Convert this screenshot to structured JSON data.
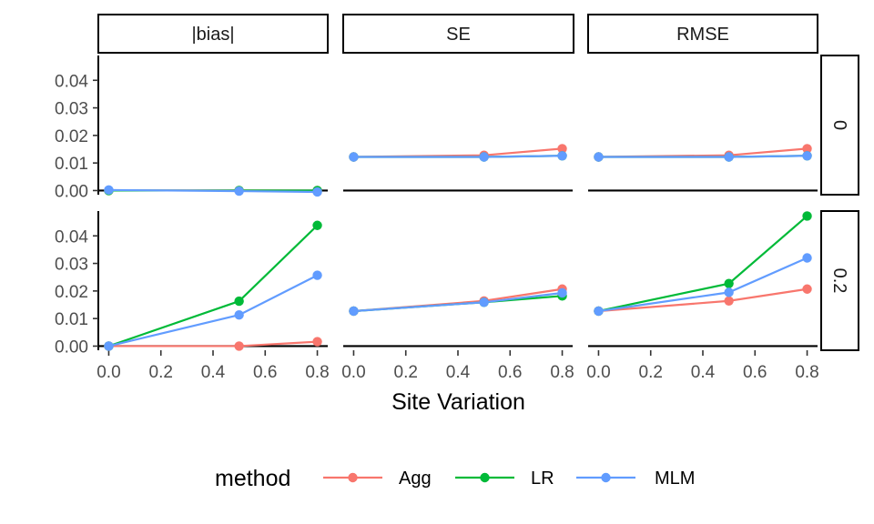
{
  "chart_data": {
    "type": "line",
    "facet_columns": [
      "|bias|",
      "SE",
      "RMSE"
    ],
    "facet_rows": [
      "0",
      "0.2"
    ],
    "x": [
      0.0,
      0.5,
      0.8
    ],
    "x_ticks": [
      "0.0",
      "0.2",
      "0.4",
      "0.6",
      "0.8"
    ],
    "y_ticks": [
      "0.00",
      "0.01",
      "0.02",
      "0.03",
      "0.04"
    ],
    "xlim": [
      -0.04,
      0.84
    ],
    "ylim": [
      -0.0015,
      0.049
    ],
    "xlabel": "Site Variation",
    "ylabel": "",
    "grid": false,
    "legend": {
      "title": "method",
      "position": "bottom",
      "entries": [
        {
          "name": "Agg",
          "color": "#F8766D"
        },
        {
          "name": "LR",
          "color": "#00BA38"
        },
        {
          "name": "MLM",
          "color": "#619CFF"
        }
      ]
    },
    "panels": [
      {
        "column": "|bias|",
        "row": "0",
        "series": [
          {
            "name": "Agg",
            "values": [
              0.0,
              0.0,
              0.0
            ]
          },
          {
            "name": "LR",
            "values": [
              0.0,
              0.0,
              0.0
            ]
          },
          {
            "name": "MLM",
            "values": [
              0.0002,
              -0.0002,
              -0.0005
            ]
          }
        ]
      },
      {
        "column": "SE",
        "row": "0",
        "series": [
          {
            "name": "Agg",
            "values": [
              0.0122,
              0.0128,
              0.0152
            ]
          },
          {
            "name": "LR",
            "values": [
              0.0122,
              0.0122,
              0.0126
            ]
          },
          {
            "name": "MLM",
            "values": [
              0.0122,
              0.0122,
              0.0126
            ]
          }
        ]
      },
      {
        "column": "RMSE",
        "row": "0",
        "series": [
          {
            "name": "Agg",
            "values": [
              0.0122,
              0.0128,
              0.0152
            ]
          },
          {
            "name": "LR",
            "values": [
              0.0122,
              0.0122,
              0.0126
            ]
          },
          {
            "name": "MLM",
            "values": [
              0.0122,
              0.0122,
              0.0126
            ]
          }
        ]
      },
      {
        "column": "|bias|",
        "row": "0.2",
        "series": [
          {
            "name": "Agg",
            "values": [
              0.0,
              0.0,
              0.0016
            ]
          },
          {
            "name": "LR",
            "values": [
              0.0,
              0.0163,
              0.0438
            ]
          },
          {
            "name": "MLM",
            "values": [
              0.0,
              0.0113,
              0.0257
            ]
          }
        ]
      },
      {
        "column": "SE",
        "row": "0.2",
        "series": [
          {
            "name": "Agg",
            "values": [
              0.0127,
              0.0164,
              0.0207
            ]
          },
          {
            "name": "LR",
            "values": [
              0.0127,
              0.0159,
              0.0182
            ]
          },
          {
            "name": "MLM",
            "values": [
              0.0127,
              0.0159,
              0.0193
            ]
          }
        ]
      },
      {
        "column": "RMSE",
        "row": "0.2",
        "series": [
          {
            "name": "Agg",
            "values": [
              0.0127,
              0.0164,
              0.0207
            ]
          },
          {
            "name": "LR",
            "values": [
              0.0127,
              0.0227,
              0.0472
            ]
          },
          {
            "name": "MLM",
            "values": [
              0.0127,
              0.0195,
              0.032
            ]
          }
        ]
      }
    ]
  }
}
